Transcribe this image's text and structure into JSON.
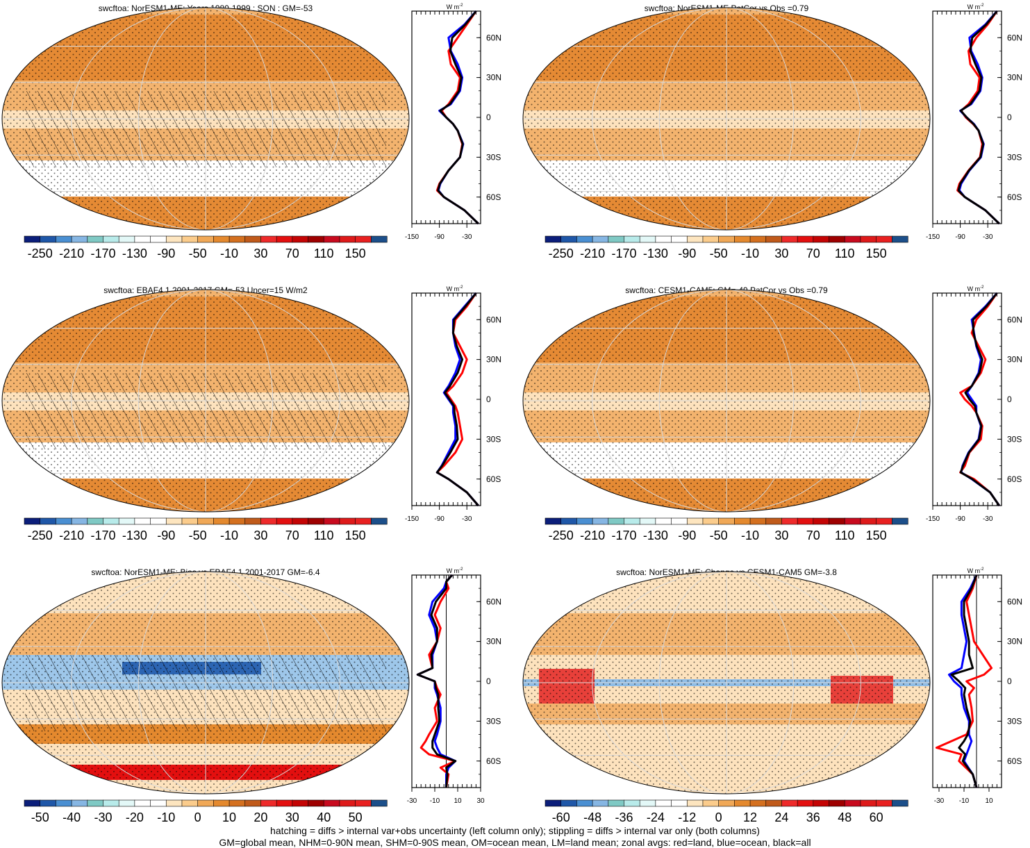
{
  "chart_data": [
    {
      "type": "heatmap",
      "title": "swcftoa: NorESM1-ME: Years 1980-1999 : SON : GM=-53",
      "colorbar_ticks": [
        "-250",
        "-210",
        "-170",
        "-130",
        "-90",
        "-50",
        "-10",
        "30",
        "70",
        "110",
        "150"
      ],
      "profile_xticks": [
        "-150",
        "-90",
        "-30"
      ],
      "profile_unit": "W m",
      "profile_unit_exp": "-2",
      "lat_ticks": [
        "60N",
        "30N",
        "0",
        "30S",
        "60S"
      ],
      "overlays": {
        "hatching": true,
        "stippling": true
      },
      "zonal_profile": {
        "lat": [
          80,
          70,
          60,
          50,
          40,
          30,
          20,
          10,
          5,
          0,
          -5,
          -10,
          -20,
          -30,
          -40,
          -50,
          -55,
          -60,
          -70,
          -80
        ],
        "series": [
          {
            "color": "#ff0000",
            "values": [
              -10,
              -30,
              -50,
              -70,
              -65,
              -45,
              -50,
              -70,
              -85,
              -75,
              -60,
              -50,
              -40,
              -45,
              -70,
              -90,
              -95,
              -80,
              -35,
              -5
            ]
          },
          {
            "color": "#0000ff",
            "values": [
              -10,
              -35,
              -70,
              -65,
              -50,
              -40,
              -45,
              -65,
              -90,
              -75,
              -60,
              -50,
              -38,
              -45,
              -70,
              -88,
              -92,
              -80,
              -35,
              -5
            ]
          },
          {
            "color": "#000000",
            "values": [
              -10,
              -33,
              -62,
              -66,
              -55,
              -42,
              -47,
              -67,
              -88,
              -75,
              -60,
              -50,
              -39,
              -45,
              -70,
              -89,
              -93,
              -80,
              -35,
              -5
            ]
          }
        ]
      }
    },
    {
      "type": "heatmap",
      "title": "swcftoa: NorESM1-ME PatCor vs Obs =0.79",
      "colorbar_ticks": [
        "-250",
        "-210",
        "-170",
        "-130",
        "-90",
        "-50",
        "-10",
        "30",
        "70",
        "110",
        "150"
      ],
      "profile_xticks": [
        "-150",
        "-90",
        "-30"
      ],
      "profile_unit": "W m",
      "profile_unit_exp": "-2",
      "lat_ticks": [
        "60N",
        "30N",
        "0",
        "30S",
        "60S"
      ],
      "overlays": {
        "hatching": false,
        "stippling": true
      },
      "zonal_profile": {
        "lat": [
          80,
          70,
          60,
          50,
          40,
          30,
          20,
          10,
          5,
          0,
          -5,
          -10,
          -20,
          -30,
          -40,
          -50,
          -55,
          -60,
          -70,
          -80
        ],
        "series": [
          {
            "color": "#ff0000",
            "values": [
              -10,
              -30,
              -55,
              -72,
              -68,
              -48,
              -52,
              -72,
              -88,
              -78,
              -62,
              -50,
              -42,
              -47,
              -72,
              -92,
              -96,
              -80,
              -35,
              -5
            ]
          },
          {
            "color": "#0000ff",
            "values": [
              -10,
              -35,
              -70,
              -66,
              -52,
              -42,
              -46,
              -66,
              -90,
              -76,
              -60,
              -50,
              -39,
              -45,
              -70,
              -88,
              -92,
              -80,
              -35,
              -5
            ]
          },
          {
            "color": "#000000",
            "values": [
              -10,
              -33,
              -64,
              -68,
              -57,
              -44,
              -48,
              -68,
              -89,
              -76,
              -61,
              -50,
              -40,
              -46,
              -71,
              -90,
              -94,
              -80,
              -35,
              -5
            ]
          }
        ]
      }
    },
    {
      "type": "heatmap",
      "title": "swcftoa: EBAF4.1 2001-2017 GM=-53 Uncer=15 W/m2",
      "colorbar_ticks": [
        "-250",
        "-210",
        "-170",
        "-130",
        "-90",
        "-50",
        "-10",
        "30",
        "70",
        "110",
        "150"
      ],
      "profile_xticks": [
        "-150",
        "-90",
        "-30"
      ],
      "profile_unit": "W m",
      "profile_unit_exp": "-2",
      "lat_ticks": [
        "60N",
        "30N",
        "0",
        "30S",
        "60S"
      ],
      "overlays": {
        "hatching": true,
        "stippling": true
      },
      "zonal_profile": {
        "lat": [
          80,
          70,
          60,
          50,
          40,
          30,
          20,
          10,
          5,
          0,
          -5,
          -10,
          -20,
          -30,
          -40,
          -50,
          -55,
          -60,
          -70,
          -80
        ],
        "series": [
          {
            "color": "#ff0000",
            "values": [
              -10,
              -30,
              -55,
              -60,
              -45,
              -30,
              -40,
              -60,
              -75,
              -65,
              -55,
              -50,
              -45,
              -40,
              -55,
              -80,
              -95,
              -70,
              -30,
              -5
            ]
          },
          {
            "color": "#0000ff",
            "values": [
              -10,
              -35,
              -60,
              -60,
              -55,
              -45,
              -55,
              -70,
              -80,
              -70,
              -60,
              -60,
              -55,
              -55,
              -70,
              -85,
              -95,
              -70,
              -30,
              -5
            ]
          },
          {
            "color": "#000000",
            "values": [
              -10,
              -33,
              -58,
              -60,
              -52,
              -40,
              -50,
              -67,
              -78,
              -68,
              -58,
              -57,
              -52,
              -50,
              -66,
              -84,
              -95,
              -70,
              -30,
              -5
            ]
          }
        ]
      }
    },
    {
      "type": "heatmap",
      "title": "swcftoa: CESM1-CAM5: GM=-49 PatCor vs Obs =0.79",
      "colorbar_ticks": [
        "-250",
        "-210",
        "-170",
        "-130",
        "-90",
        "-50",
        "-10",
        "30",
        "70",
        "110",
        "150"
      ],
      "profile_xticks": [
        "-150",
        "-90",
        "-30"
      ],
      "profile_unit": "W m",
      "profile_unit_exp": "-2",
      "lat_ticks": [
        "60N",
        "30N",
        "0",
        "30S",
        "60S"
      ],
      "overlays": {
        "hatching": false,
        "stippling": true
      },
      "zonal_profile": {
        "lat": [
          80,
          70,
          60,
          50,
          40,
          30,
          20,
          10,
          5,
          0,
          -5,
          -10,
          -20,
          -30,
          -40,
          -50,
          -55,
          -60,
          -70,
          -80
        ],
        "series": [
          {
            "color": "#ff0000",
            "values": [
              -10,
              -30,
              -55,
              -65,
              -50,
              -35,
              -45,
              -65,
              -90,
              -80,
              -65,
              -55,
              -42,
              -45,
              -70,
              -80,
              -90,
              -60,
              -25,
              -5
            ]
          },
          {
            "color": "#0000ff",
            "values": [
              -10,
              -35,
              -65,
              -60,
              -55,
              -45,
              -50,
              -65,
              -75,
              -65,
              -55,
              -55,
              -45,
              -50,
              -72,
              -85,
              -88,
              -65,
              -25,
              -5
            ]
          },
          {
            "color": "#000000",
            "values": [
              -10,
              -33,
              -62,
              -61,
              -54,
              -42,
              -48,
              -65,
              -79,
              -70,
              -58,
              -55,
              -44,
              -49,
              -71,
              -84,
              -89,
              -64,
              -25,
              -5
            ]
          }
        ]
      }
    },
    {
      "type": "heatmap",
      "title": "swcftoa: NorESM1-ME: Bias vs EBAF4.1 2001-2017  GM=-6.4",
      "colorbar_ticks": [
        "-50",
        "-40",
        "-30",
        "-20",
        "-10",
        "0",
        "10",
        "20",
        "30",
        "40",
        "50"
      ],
      "profile_xticks": [
        "-30",
        "-10",
        "10",
        "30"
      ],
      "profile_unit": "W m",
      "profile_unit_exp": "-2",
      "lat_ticks": [
        "60N",
        "30N",
        "0",
        "30S",
        "60S"
      ],
      "overlays": {
        "hatching": true,
        "stippling": true
      },
      "zonal_profile": {
        "lat": [
          80,
          75,
          70,
          60,
          50,
          40,
          30,
          20,
          10,
          5,
          0,
          -5,
          -10,
          -20,
          -30,
          -40,
          -45,
          -50,
          -55,
          -60,
          -65,
          -70,
          -80
        ],
        "series": [
          {
            "color": "#ff0000",
            "values": [
              5,
              0,
              2,
              -5,
              -10,
              -5,
              -8,
              -15,
              -12,
              -25,
              -10,
              -8,
              -5,
              -10,
              -8,
              -15,
              -18,
              -22,
              -15,
              8,
              -5,
              2,
              0
            ]
          },
          {
            "color": "#0000ff",
            "values": [
              5,
              0,
              -2,
              -12,
              -15,
              -10,
              -8,
              -12,
              -12,
              -25,
              -10,
              -10,
              -8,
              -5,
              -5,
              -8,
              -10,
              -8,
              -5,
              8,
              2,
              0,
              0
            ]
          },
          {
            "color": "#000000",
            "values": [
              5,
              0,
              0,
              -9,
              -13,
              -8,
              -8,
              -13,
              -12,
              -25,
              -10,
              -9,
              -7,
              -7,
              -6,
              -10,
              -12,
              -12,
              -8,
              8,
              0,
              1,
              0
            ]
          }
        ]
      }
    },
    {
      "type": "heatmap",
      "title": "swcftoa: NorESM1-ME: Change vs CESM1-CAM5 GM=-3.8",
      "colorbar_ticks": [
        "-60",
        "-48",
        "-36",
        "-24",
        "-12",
        "0",
        "12",
        "24",
        "36",
        "48",
        "60"
      ],
      "profile_xticks": [
        "-30",
        "-10",
        "10"
      ],
      "profile_unit": "W m",
      "profile_unit_exp": "-2",
      "lat_ticks": [
        "60N",
        "30N",
        "0",
        "30S",
        "60S"
      ],
      "overlays": {
        "hatching": false,
        "stippling": true
      },
      "zonal_profile": {
        "lat": [
          80,
          70,
          60,
          50,
          40,
          30,
          20,
          10,
          5,
          0,
          -5,
          -10,
          -20,
          -30,
          -40,
          -45,
          -50,
          -55,
          -60,
          -70,
          -80
        ],
        "series": [
          {
            "color": "#ff0000",
            "values": [
              0,
              -3,
              -8,
              -6,
              -4,
              -2,
              5,
              12,
              6,
              -8,
              -2,
              -6,
              -4,
              -3,
              -8,
              -20,
              -32,
              -12,
              -14,
              -3,
              0
            ]
          },
          {
            "color": "#0000ff",
            "values": [
              0,
              -5,
              -12,
              -12,
              -10,
              -8,
              -10,
              -12,
              -22,
              -18,
              -12,
              -12,
              -10,
              -6,
              -6,
              -4,
              -6,
              -8,
              -10,
              -3,
              0
            ]
          },
          {
            "color": "#000000",
            "values": [
              0,
              -4,
              -10,
              -10,
              -8,
              -6,
              -6,
              -3,
              -20,
              -14,
              -9,
              -10,
              -8,
              -5,
              -7,
              -10,
              -14,
              -9,
              -11,
              -3,
              0
            ]
          }
        ]
      }
    }
  ],
  "footer": {
    "line1": "hatching = diffs > internal var+obs uncertainty (left column only); stippling = diffs > internal var only (both columns)",
    "line2": "GM=global mean, NHM=0-90N mean, SHM=0-90S mean, OM=ocean mean, LM=land mean; zonal avgs: red=land, blue=ocean, black=all"
  },
  "colors": {
    "abs_palette": [
      "#0b1e7a",
      "#1f57a8",
      "#4a8fd2",
      "#86b6e3",
      "#7fc9c4",
      "#b8ebea",
      "#e3f8f7",
      "#ffffff",
      "#ffffff",
      "#fde5bf",
      "#fbcc8c",
      "#f0a857",
      "#e4892e",
      "#d4701f",
      "#c05a1a",
      "#ee2a2a",
      "#e30f0f",
      "#c40404",
      "#9e0000",
      "#c80a1e",
      "#de1a1a",
      "#e82020",
      "#1c4f8a"
    ],
    "diff_palette": [
      "#0b1e7a",
      "#1f57a8",
      "#4a8fd2",
      "#86b6e3",
      "#7fc9c4",
      "#b8ebea",
      "#e3f8f7",
      "#ffffff",
      "#ffffff",
      "#fde5bf",
      "#fbcc8c",
      "#f0a857",
      "#e4892e",
      "#d4701f",
      "#c05a1a",
      "#ee2a2a",
      "#e30f0f",
      "#c40404",
      "#9e0000",
      "#c80a1e",
      "#de1a1a",
      "#e82020",
      "#1c4f8a"
    ]
  }
}
